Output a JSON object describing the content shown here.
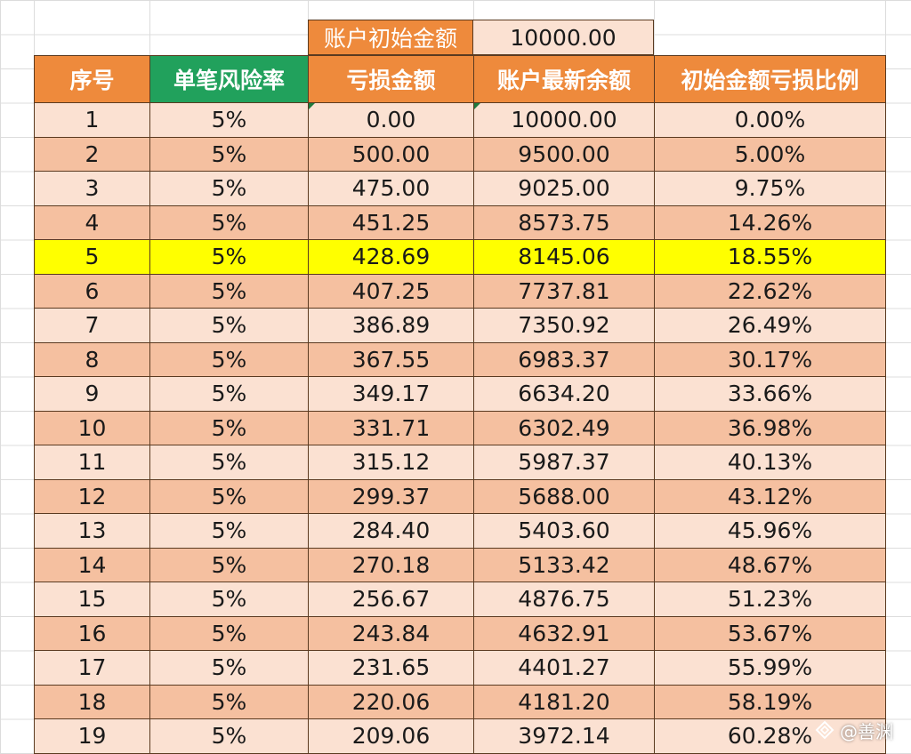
{
  "header_cells": {
    "initial_label": "账户初始金额",
    "initial_value": "10000.00"
  },
  "table": {
    "columns": [
      "序号",
      "单笔风险率",
      "亏损金额",
      "账户最新余额",
      "初始金额亏损比例"
    ],
    "rows": [
      [
        "1",
        "5%",
        "0.00",
        "10000.00",
        "0.00%"
      ],
      [
        "2",
        "5%",
        "500.00",
        "9500.00",
        "5.00%"
      ],
      [
        "3",
        "5%",
        "475.00",
        "9025.00",
        "9.75%"
      ],
      [
        "4",
        "5%",
        "451.25",
        "8573.75",
        "14.26%"
      ],
      [
        "5",
        "5%",
        "428.69",
        "8145.06",
        "18.55%"
      ],
      [
        "6",
        "5%",
        "407.25",
        "7737.81",
        "22.62%"
      ],
      [
        "7",
        "5%",
        "386.89",
        "7350.92",
        "26.49%"
      ],
      [
        "8",
        "5%",
        "367.55",
        "6983.37",
        "30.17%"
      ],
      [
        "9",
        "5%",
        "349.17",
        "6634.20",
        "33.66%"
      ],
      [
        "10",
        "5%",
        "331.71",
        "6302.49",
        "36.98%"
      ],
      [
        "11",
        "5%",
        "315.12",
        "5987.37",
        "40.13%"
      ],
      [
        "12",
        "5%",
        "299.37",
        "5688.00",
        "43.12%"
      ],
      [
        "13",
        "5%",
        "284.40",
        "5403.60",
        "45.96%"
      ],
      [
        "14",
        "5%",
        "270.18",
        "5133.42",
        "48.67%"
      ],
      [
        "15",
        "5%",
        "256.67",
        "4876.75",
        "51.23%"
      ],
      [
        "16",
        "5%",
        "243.84",
        "4632.91",
        "53.67%"
      ],
      [
        "17",
        "5%",
        "231.65",
        "4401.27",
        "55.99%"
      ],
      [
        "18",
        "5%",
        "220.06",
        "4181.20",
        "58.19%"
      ],
      [
        "19",
        "5%",
        "209.06",
        "3972.14",
        "60.28%"
      ]
    ],
    "highlighted_row": "5"
  },
  "watermark": {
    "text": "@善渊",
    "icon": "diamond-logo-icon"
  },
  "colors": {
    "header_orange": "#ee8a3c",
    "header_green": "#21a15c",
    "row_light": "#fbe1d2",
    "row_dark": "#f5c0a0",
    "highlight": "#ffff00"
  }
}
